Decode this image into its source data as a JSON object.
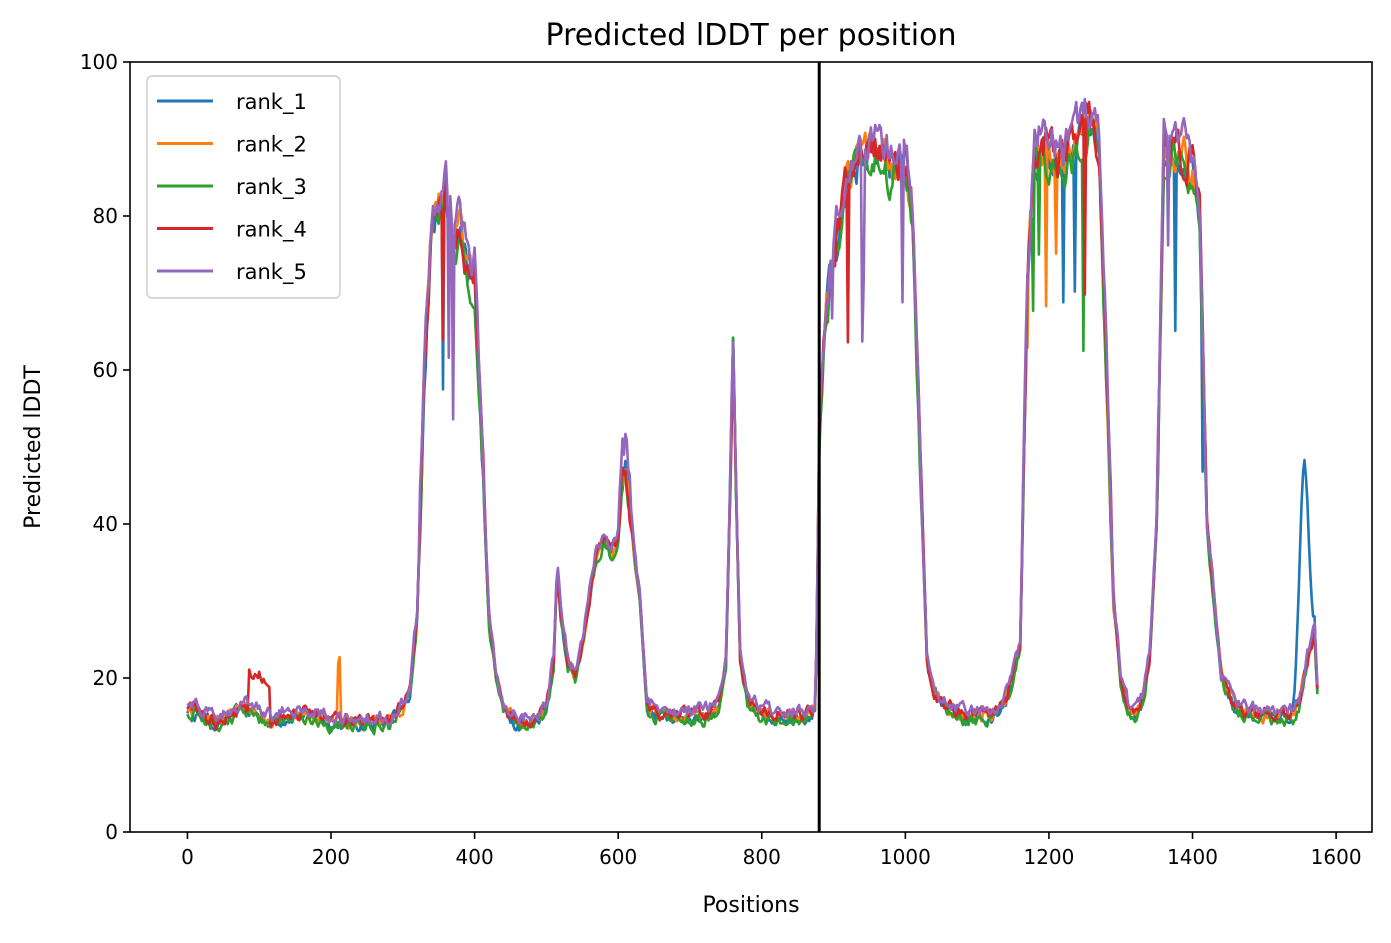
{
  "chart_data": {
    "type": "line",
    "title": "Predicted lDDT per position",
    "xlabel": "Positions",
    "ylabel": "Predicted lDDT",
    "xlim": [
      -80,
      1650
    ],
    "ylim": [
      0,
      100
    ],
    "xticks": [
      0,
      200,
      400,
      600,
      800,
      1000,
      1200,
      1400,
      1600
    ],
    "yticks": [
      0,
      20,
      40,
      60,
      80,
      100
    ],
    "grid": false,
    "legend_position": "top-left",
    "vline_x": 880,
    "colors": {
      "rank_1": "#1f77b4",
      "rank_2": "#ff7f0e",
      "rank_3": "#2ca02c",
      "rank_4": "#d62728",
      "rank_5": "#9467bd"
    },
    "base_profile": {
      "x": [
        0,
        20,
        40,
        60,
        80,
        100,
        120,
        140,
        160,
        180,
        200,
        220,
        240,
        260,
        280,
        300,
        310,
        320,
        330,
        340,
        350,
        360,
        370,
        380,
        390,
        400,
        410,
        420,
        430,
        440,
        460,
        480,
        500,
        510,
        515,
        520,
        530,
        540,
        550,
        560,
        570,
        580,
        590,
        600,
        605,
        610,
        620,
        630,
        640,
        660,
        680,
        700,
        720,
        740,
        750,
        755,
        760,
        765,
        770,
        780,
        800,
        820,
        840,
        860,
        875,
        880,
        890,
        900,
        910,
        920,
        940,
        960,
        980,
        1000,
        1010,
        1020,
        1030,
        1040,
        1060,
        1080,
        1100,
        1120,
        1140,
        1160,
        1170,
        1180,
        1200,
        1220,
        1240,
        1260,
        1270,
        1280,
        1290,
        1300,
        1310,
        1320,
        1330,
        1340,
        1350,
        1360,
        1380,
        1400,
        1410,
        1420,
        1440,
        1460,
        1480,
        1500,
        1520,
        1540,
        1550,
        1560,
        1570,
        1574
      ],
      "y": [
        16,
        15,
        14,
        15,
        16,
        15,
        14,
        15,
        15,
        15,
        14,
        14,
        14,
        14,
        14,
        16,
        18,
        28,
        60,
        78,
        80,
        82,
        76,
        78,
        72,
        72,
        50,
        28,
        20,
        16,
        14,
        14,
        16,
        22,
        34,
        28,
        22,
        20,
        24,
        30,
        36,
        38,
        36,
        38,
        46,
        48,
        38,
        30,
        16,
        15,
        15,
        15,
        15,
        16,
        22,
        40,
        62,
        40,
        22,
        17,
        15,
        15,
        15,
        15,
        16,
        50,
        68,
        74,
        80,
        85,
        88,
        88,
        86,
        86,
        80,
        50,
        22,
        18,
        16,
        15,
        15,
        15,
        17,
        24,
        70,
        88,
        88,
        86,
        90,
        92,
        88,
        60,
        30,
        20,
        16,
        15,
        17,
        22,
        40,
        88,
        88,
        86,
        80,
        40,
        20,
        16,
        15,
        15,
        15,
        15,
        17,
        22,
        26,
        18
      ]
    },
    "series": [
      {
        "name": "rank_1",
        "values": []
      },
      {
        "name": "rank_2",
        "values": []
      },
      {
        "name": "rank_3",
        "values": []
      },
      {
        "name": "rank_4",
        "values": []
      },
      {
        "name": "rank_5",
        "values": []
      }
    ]
  }
}
